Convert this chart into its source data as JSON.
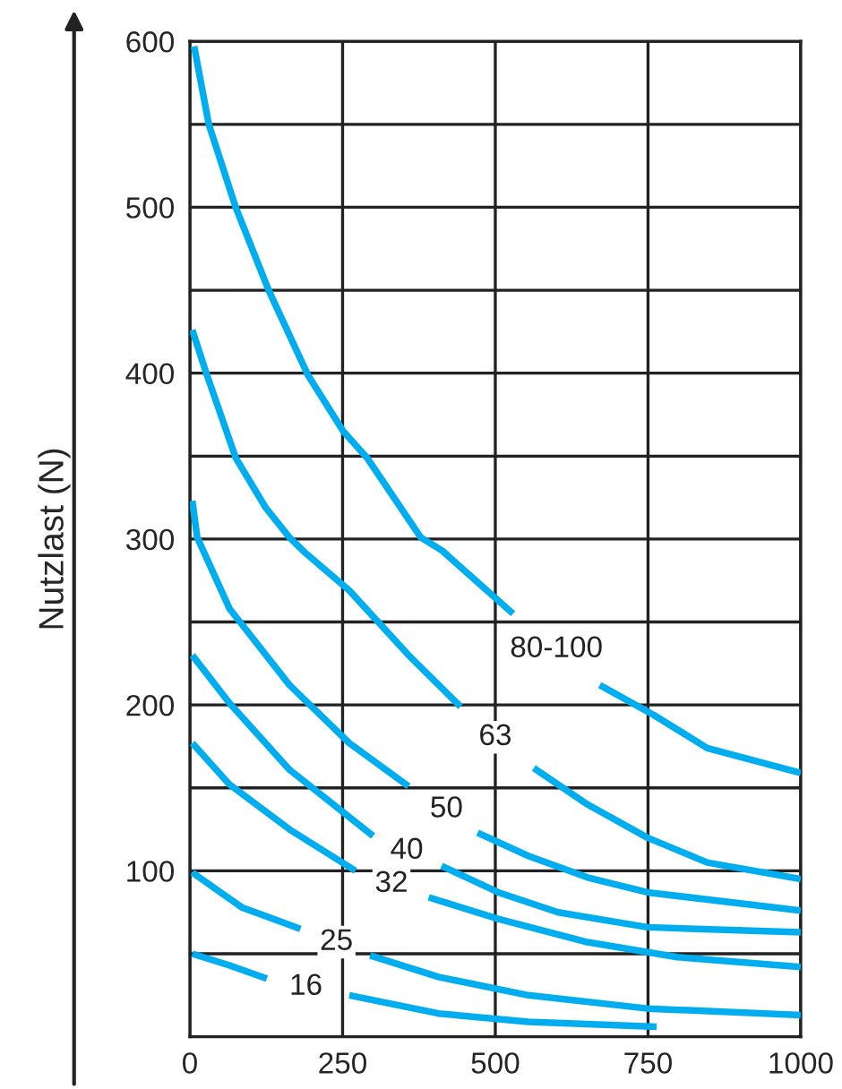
{
  "chart_data": {
    "type": "line",
    "ylabel": "Nutzlast (N)",
    "xlim": [
      0,
      1000
    ],
    "xticks": [
      0,
      250,
      500,
      750,
      1000
    ],
    "ylim": [
      0,
      600
    ],
    "yticks": [
      {
        "value": 0,
        "label": null
      },
      {
        "value": 50,
        "label": null
      },
      100,
      {
        "value": 150,
        "label": null
      },
      200,
      {
        "value": 250,
        "label": null
      },
      300,
      {
        "value": 350,
        "label": null
      },
      400,
      {
        "value": 450,
        "label": null
      },
      500,
      {
        "value": 550,
        "label": null
      },
      600
    ],
    "grid": true,
    "legend": false,
    "line_style": "solid",
    "marker": "none",
    "series": [
      {
        "name": "80-100",
        "color": "#00aeef",
        "x": [
          7,
          31,
          75,
          129,
          193,
          251,
          290,
          378,
          413,
          529,
          600,
          671,
          759,
          847,
          1000
        ],
        "values": [
          597,
          550,
          500,
          450,
          399,
          365,
          349,
          301,
          293,
          255,
          null,
          212,
          194,
          174,
          159
        ]
      },
      {
        "name": "63",
        "color": "#00aeef",
        "x": [
          4,
          26,
          75,
          124,
          163,
          188,
          261,
          358,
          443,
          500,
          563,
          651,
          749,
          847,
          1000
        ],
        "values": [
          426,
          401,
          349,
          319,
          301,
          292,
          269,
          230,
          199,
          null,
          162,
          140,
          120,
          105,
          95
        ]
      },
      {
        "name": "50",
        "color": "#00aeef",
        "x": [
          4,
          12,
          65,
          163,
          261,
          358,
          420,
          471,
          554,
          651,
          749,
          1000
        ],
        "values": [
          323,
          301,
          258,
          212,
          177,
          151,
          null,
          123,
          109,
          96,
          87,
          76
        ]
      },
      {
        "name": "40",
        "color": "#00aeef",
        "x": [
          4,
          65,
          163,
          300,
          355,
          412,
          505,
          603,
          749,
          1000
        ],
        "values": [
          230,
          201,
          161,
          121,
          null,
          103,
          87,
          75,
          66,
          63
        ]
      },
      {
        "name": "32",
        "color": "#00aeef",
        "x": [
          4,
          65,
          163,
          271,
          330,
          391,
          505,
          651,
          798,
          1000
        ],
        "values": [
          177,
          152,
          125,
          100,
          null,
          84,
          71,
          57,
          48,
          42
        ]
      },
      {
        "name": "25",
        "color": "#00aeef",
        "x": [
          4,
          85,
          181,
          240,
          295,
          407,
          554,
          749,
          1000
        ],
        "values": [
          99,
          78,
          65,
          null,
          49,
          36,
          25,
          17,
          13
        ]
      },
      {
        "name": "16",
        "color": "#00aeef",
        "x": [
          4,
          65,
          126,
          190,
          261,
          407,
          554,
          764
        ],
        "values": [
          50,
          43,
          35,
          null,
          25,
          14,
          9,
          6
        ]
      }
    ]
  }
}
